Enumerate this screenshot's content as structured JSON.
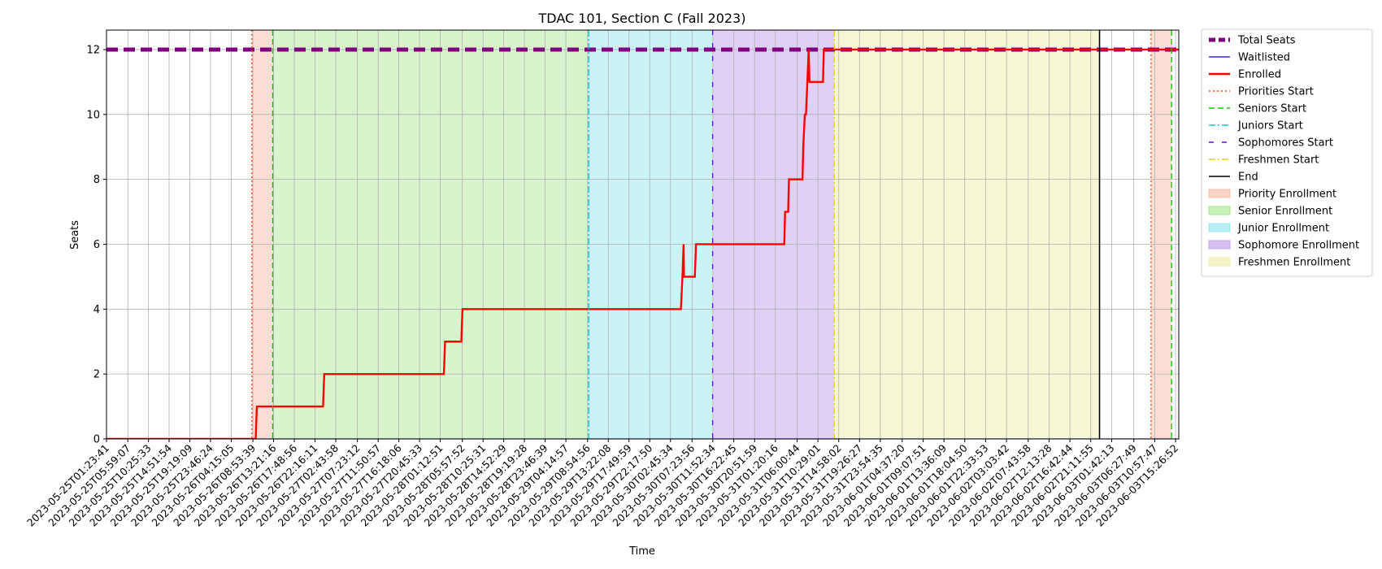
{
  "chart_data": {
    "type": "line",
    "title": "TDAC 101, Section C (Fall 2023)",
    "xlabel": "Time",
    "ylabel": "Seats",
    "ylim": [
      0,
      12.6
    ],
    "xlim": [
      "2023-05-25T01:23:41",
      "2023-06-03T16:08:00"
    ],
    "grid": true,
    "legend_position": "outside-right",
    "y_ticks": [
      0,
      2,
      4,
      6,
      8,
      10,
      12
    ],
    "x_ticks": [
      "2023-05-25T01:23:41",
      "2023-05-25T05:59:07",
      "2023-05-25T10:25:33",
      "2023-05-25T14:51:54",
      "2023-05-25T19:19:09",
      "2023-05-25T23:46:24",
      "2023-05-26T04:15:05",
      "2023-05-26T08:53:39",
      "2023-05-26T13:21:16",
      "2023-05-26T17:48:56",
      "2023-05-26T22:16:11",
      "2023-05-27T02:43:58",
      "2023-05-27T07:23:12",
      "2023-05-27T11:50:57",
      "2023-05-27T16:18:06",
      "2023-05-27T20:45:33",
      "2023-05-28T01:12:51",
      "2023-05-28T05:57:52",
      "2023-05-28T10:25:31",
      "2023-05-28T14:52:29",
      "2023-05-28T19:19:28",
      "2023-05-28T23:46:39",
      "2023-05-29T04:14:57",
      "2023-05-29T08:54:56",
      "2023-05-29T13:22:08",
      "2023-05-29T17:49:59",
      "2023-05-29T22:17:50",
      "2023-05-30T02:45:34",
      "2023-05-30T07:23:56",
      "2023-05-30T11:52:34",
      "2023-05-30T16:22:45",
      "2023-05-30T20:51:59",
      "2023-05-31T01:20:16",
      "2023-05-31T06:00:44",
      "2023-05-31T10:29:01",
      "2023-05-31T14:58:02",
      "2023-05-31T19:26:27",
      "2023-05-31T23:54:35",
      "2023-06-01T04:37:20",
      "2023-06-01T09:07:51",
      "2023-06-01T13:36:09",
      "2023-06-01T18:04:50",
      "2023-06-01T22:33:53",
      "2023-06-02T03:03:42",
      "2023-06-02T07:43:58",
      "2023-06-02T12:13:28",
      "2023-06-02T16:42:44",
      "2023-06-02T21:11:55",
      "2023-06-03T01:42:13",
      "2023-06-03T06:27:49",
      "2023-06-03T10:57:47",
      "2023-06-03T15:26:52"
    ],
    "series": [
      {
        "name": "Total Seats",
        "color": "#800080",
        "style": "dashed",
        "x": [
          "2023-05-25T01:23:41",
          "2023-06-03T16:08:00"
        ],
        "y": [
          12,
          12
        ]
      },
      {
        "name": "Waitlisted",
        "color": "#0000ff",
        "style": "solid",
        "x": [
          "2023-05-25T01:23:41",
          "2023-06-03T16:08:00"
        ],
        "y": [
          0,
          0
        ]
      },
      {
        "name": "Enrolled",
        "color": "#ff0000",
        "style": "solid",
        "x": [
          "2023-05-25T01:23:41",
          "2023-05-26T09:30:00",
          "2023-05-26T09:45:00",
          "2023-05-27T00:00:00",
          "2023-05-27T00:15:00",
          "2023-05-28T02:00:00",
          "2023-05-28T02:15:00",
          "2023-05-28T05:45:00",
          "2023-05-28T06:00:00",
          "2023-05-30T05:00:00",
          "2023-05-30T05:20:00",
          "2023-05-30T05:35:00",
          "2023-05-30T05:40:00",
          "2023-05-30T06:00:00",
          "2023-05-30T08:00:00",
          "2023-05-30T08:15:00",
          "2023-05-31T03:15:00",
          "2023-05-31T03:25:00",
          "2023-05-31T04:05:00",
          "2023-05-31T04:15:00",
          "2023-05-31T07:10:00",
          "2023-05-31T07:20:00",
          "2023-05-31T07:40:00",
          "2023-05-31T07:55:00",
          "2023-05-31T08:30:00",
          "2023-05-31T08:40:00",
          "2023-05-31T11:35:00",
          "2023-05-31T11:45:00",
          "2023-06-03T16:08:00"
        ],
        "y": [
          0,
          0,
          1,
          1,
          2,
          2,
          3,
          3,
          4,
          4,
          5,
          6,
          5,
          5,
          5,
          6,
          6,
          7,
          7,
          8,
          8,
          9,
          10,
          10,
          12,
          11,
          11,
          12,
          12
        ]
      }
    ],
    "vertical_lines": [
      {
        "name": "Priorities Start",
        "color": "#ff4500",
        "style": "dotted",
        "x": "2023-05-26T08:40:00",
        "legend": true
      },
      {
        "name": "Seniors Start",
        "color": "#00c800",
        "style": "dashed",
        "x": "2023-05-26T13:10:00",
        "legend": true
      },
      {
        "name": "Juniors Start",
        "color": "#00c8c8",
        "style": "dashdot",
        "x": "2023-05-29T09:10:00",
        "legend": true
      },
      {
        "name": "Sophomores Start",
        "color": "#6a00ff",
        "style": "loosedash",
        "x": "2023-05-30T11:50:00",
        "legend": true
      },
      {
        "name": "Freshmen Start",
        "color": "#e6d200",
        "style": "dashdot",
        "x": "2023-05-31T14:00:00",
        "legend": true
      },
      {
        "name": "End",
        "color": "#000000",
        "style": "solid",
        "x": "2023-06-02T23:05:00",
        "legend": true
      },
      {
        "name": "Priorities Start",
        "color": "#ff4500",
        "style": "dotted",
        "x": "2023-06-03T10:10:00",
        "legend": false
      },
      {
        "name": "Seniors Start",
        "color": "#00c800",
        "style": "dashed",
        "x": "2023-06-03T14:35:00",
        "legend": false
      }
    ],
    "spans": [
      {
        "name": "Priority Enrollment",
        "color": "#f4b6a0",
        "opacity": 0.45,
        "x": [
          "2023-05-26T08:40:00",
          "2023-05-26T13:10:00"
        ],
        "legend": true
      },
      {
        "name": "Senior Enrollment",
        "color": "#9be37f",
        "opacity": 0.4,
        "x": [
          "2023-05-26T13:10:00",
          "2023-05-29T09:10:00"
        ],
        "legend": true
      },
      {
        "name": "Junior Enrollment",
        "color": "#8ae4ea",
        "opacity": 0.45,
        "x": [
          "2023-05-29T09:10:00",
          "2023-05-30T11:50:00"
        ],
        "legend": true
      },
      {
        "name": "Sophomore Enrollment",
        "color": "#b99ae8",
        "opacity": 0.45,
        "x": [
          "2023-05-30T11:50:00",
          "2023-05-31T14:00:00"
        ],
        "legend": true
      },
      {
        "name": "Freshmen Enrollment",
        "color": "#eeeeaa",
        "opacity": 0.5,
        "x": [
          "2023-05-31T14:00:00",
          "2023-06-02T23:05:00"
        ],
        "legend": true
      },
      {
        "name": "Priority Enrollment",
        "color": "#f4b6a0",
        "opacity": 0.45,
        "x": [
          "2023-06-03T10:10:00",
          "2023-06-03T14:35:00"
        ],
        "legend": false
      }
    ]
  }
}
